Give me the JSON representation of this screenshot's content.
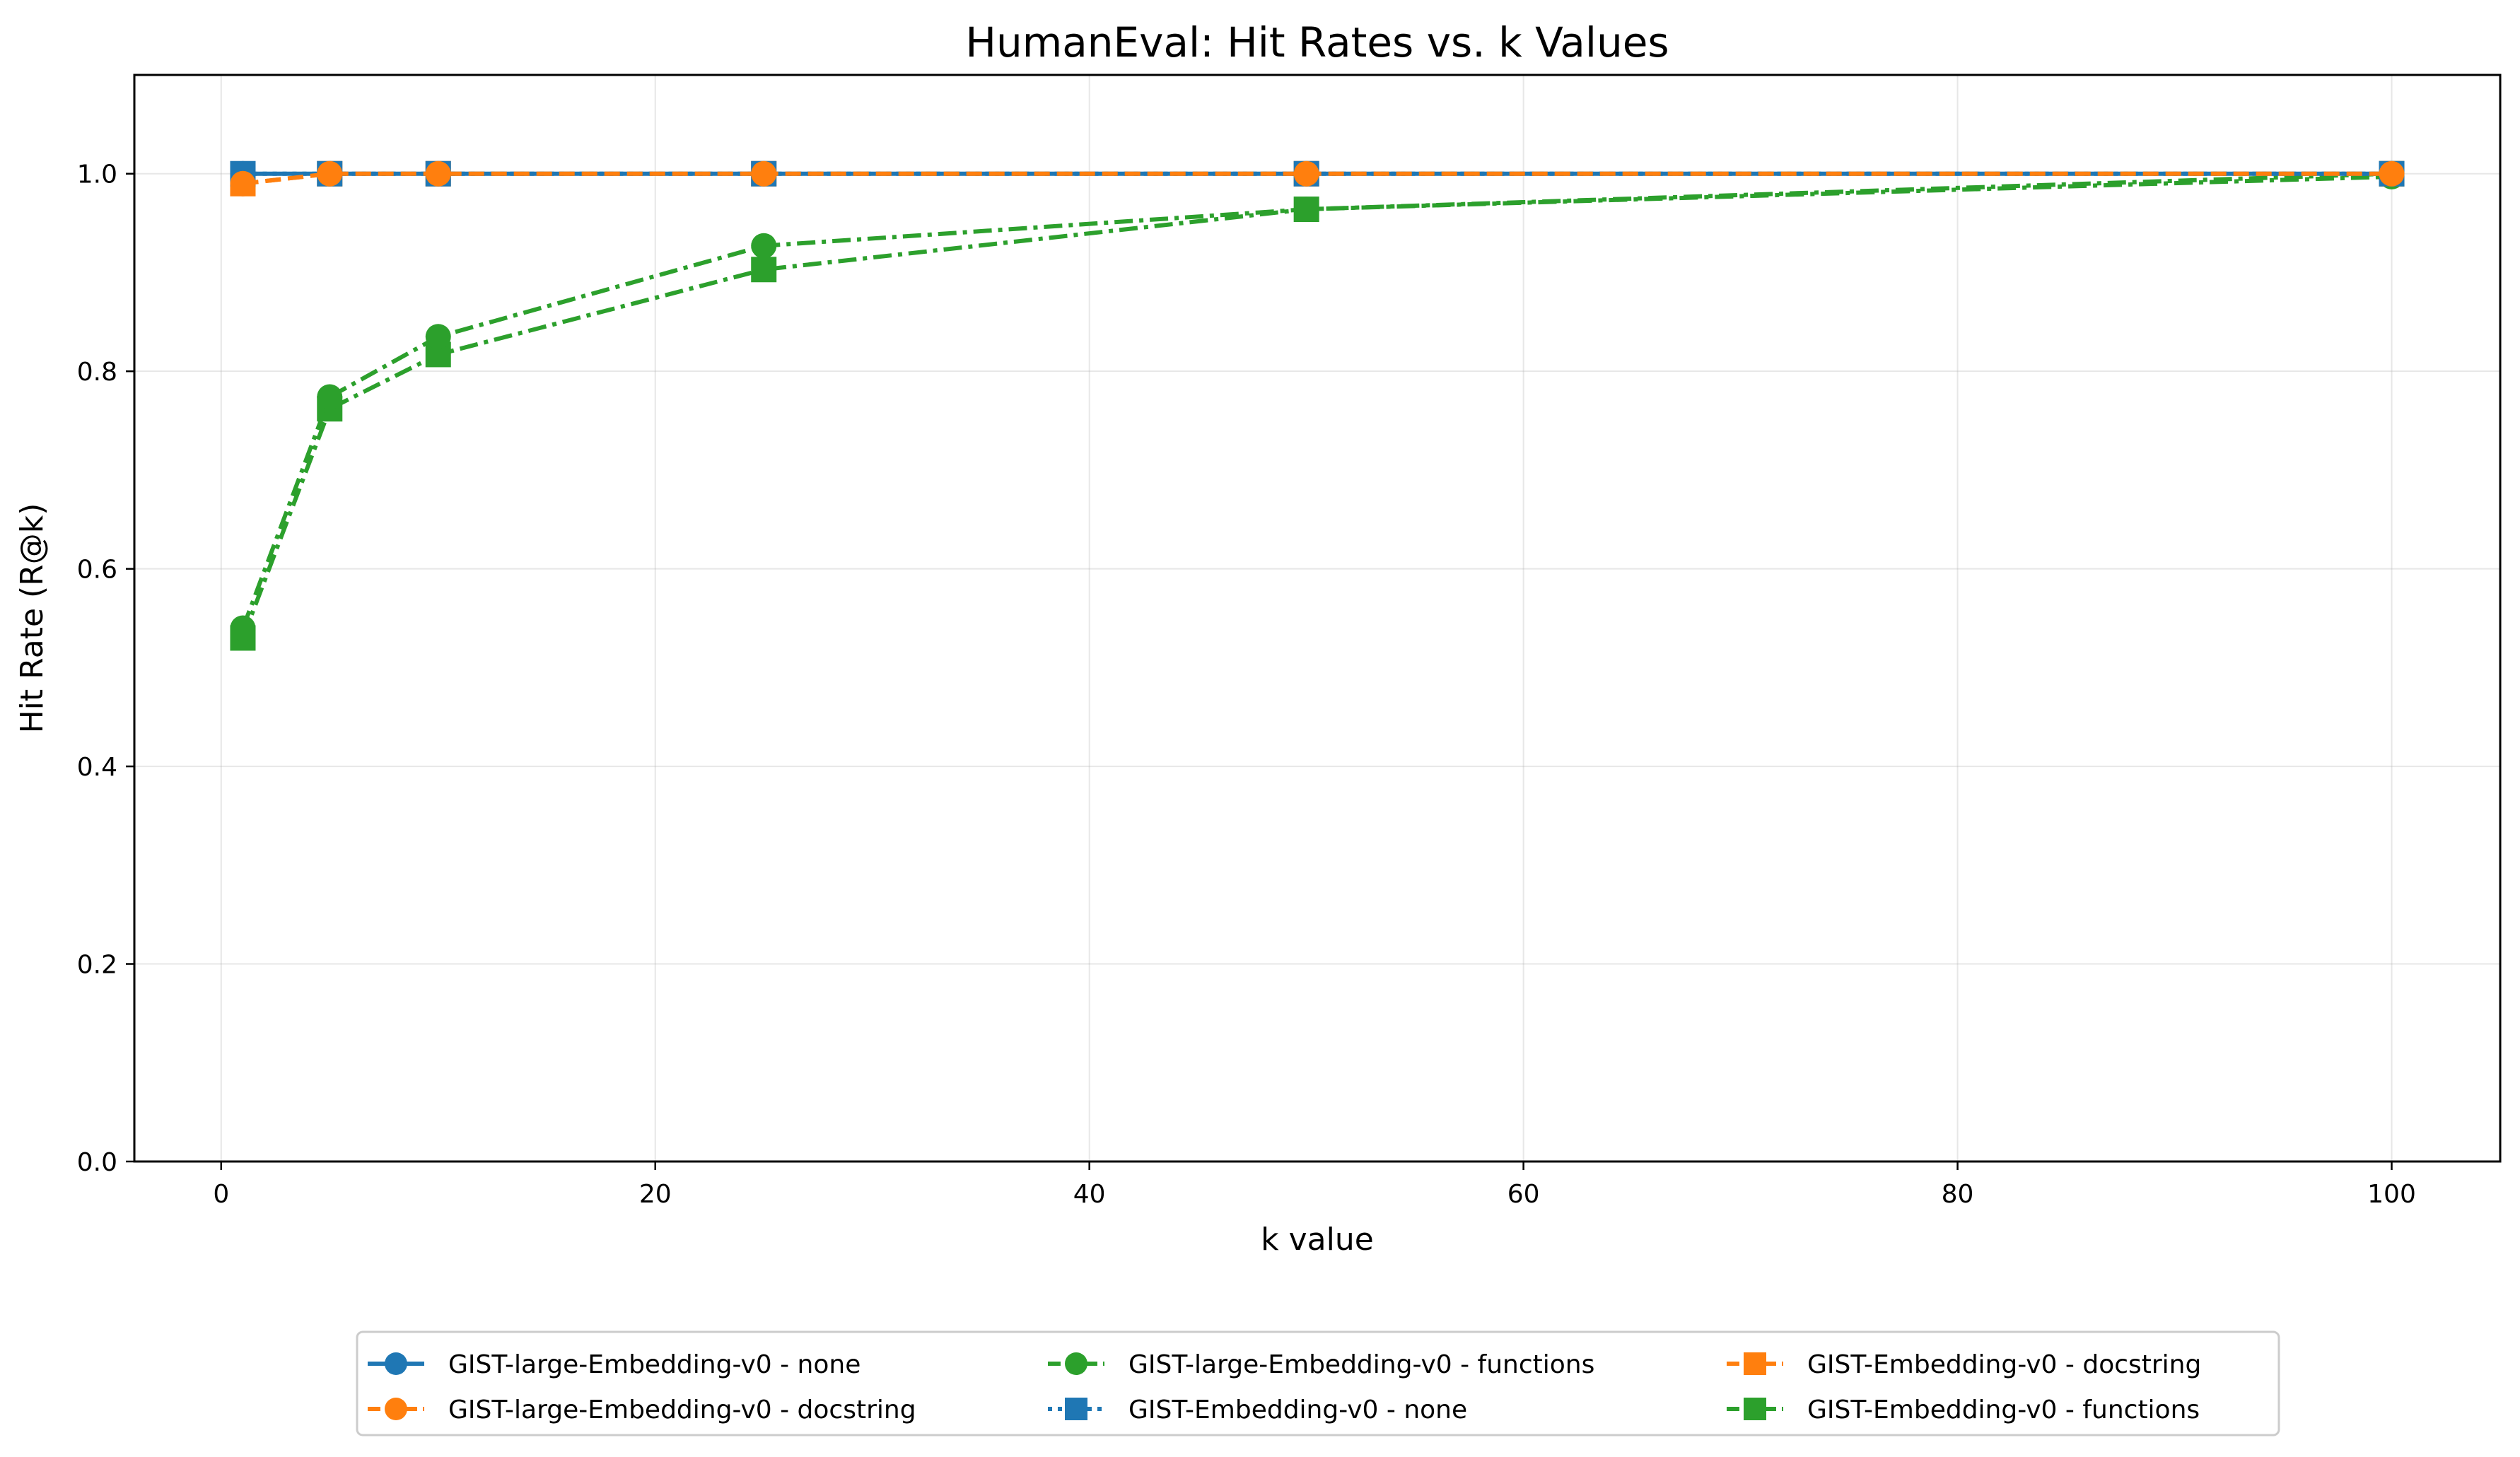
{
  "chart_data": {
    "type": "line",
    "title": "HumanEval: Hit Rates vs. k Values",
    "xlabel": "k value",
    "ylabel": "Hit Rate (R@k)",
    "xlim": [
      -4,
      105
    ],
    "ylim": [
      0,
      1.1
    ],
    "xticks": [
      0,
      20,
      40,
      60,
      80,
      100
    ],
    "yticks": [
      0.0,
      0.2,
      0.4,
      0.6,
      0.8,
      1.0
    ],
    "xtick_labels": [
      "0",
      "20",
      "40",
      "60",
      "80",
      "100"
    ],
    "ytick_labels": [
      "0.0",
      "0.2",
      "0.4",
      "0.6",
      "0.8",
      "1.0"
    ],
    "grid": true,
    "legend_position": "below plot, three columns",
    "series": [
      {
        "name": "GIST-large-Embedding-v0 - none",
        "color": "#1f77b4",
        "line_style": "solid",
        "marker": "circle",
        "x": [
          1,
          5,
          10,
          25,
          50,
          100
        ],
        "values": [
          1.0,
          1.0,
          1.0,
          1.0,
          1.0,
          1.0
        ]
      },
      {
        "name": "GIST-large-Embedding-v0 - docstring",
        "color": "#ff7f0e",
        "line_style": "dashed",
        "marker": "circle",
        "x": [
          1,
          5,
          10,
          25,
          50,
          100
        ],
        "values": [
          0.99,
          1.0,
          1.0,
          1.0,
          1.0,
          1.0
        ]
      },
      {
        "name": "GIST-large-Embedding-v0 - functions",
        "color": "#2ca02c",
        "line_style": "dashdot",
        "marker": "circle",
        "x": [
          1,
          5,
          10,
          25,
          50,
          100
        ],
        "values": [
          0.54,
          0.774,
          0.835,
          0.927,
          0.964,
          0.997
        ]
      },
      {
        "name": "GIST-Embedding-v0 - none",
        "color": "#1f77b4",
        "line_style": "dotted",
        "marker": "square",
        "x": [
          1,
          5,
          10,
          25,
          50,
          100
        ],
        "values": [
          1.0,
          1.0,
          1.0,
          1.0,
          1.0,
          1.0
        ]
      },
      {
        "name": "GIST-Embedding-v0 - docstring",
        "color": "#ff7f0e",
        "line_style": "dashed",
        "marker": "square",
        "x": [
          1,
          5,
          10,
          25,
          50,
          100
        ],
        "values": [
          0.99,
          1.0,
          1.0,
          1.0,
          1.0,
          1.0
        ]
      },
      {
        "name": "GIST-Embedding-v0 - functions",
        "color": "#2ca02c",
        "line_style": "dashdot",
        "marker": "square",
        "x": [
          1,
          5,
          10,
          25,
          50,
          100
        ],
        "values": [
          0.53,
          0.762,
          0.817,
          0.903,
          0.964,
          1.0
        ]
      }
    ]
  }
}
